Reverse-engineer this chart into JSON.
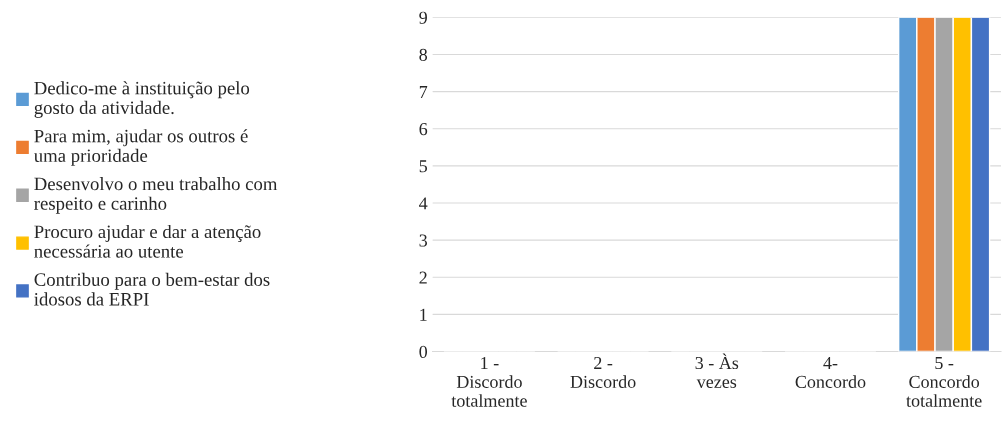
{
  "chart_data": {
    "type": "bar",
    "categories": [
      "1 - Discordo totalmente",
      "2 - Discordo",
      "3 - Às vezes",
      "4- Concordo",
      "5 - Concordo totalmente"
    ],
    "series": [
      {
        "name": "Dedico-me à instituição pelo gosto da atividade.",
        "color": "#5b9bd5",
        "values": [
          0,
          0,
          0,
          0,
          9
        ]
      },
      {
        "name": "Para mim, ajudar os outros é uma prioridade",
        "color": "#ed7d31",
        "values": [
          0,
          0,
          0,
          0,
          9
        ]
      },
      {
        "name": "Desenvolvo o meu trabalho com respeito e carinho",
        "color": "#a5a5a5",
        "values": [
          0,
          0,
          0,
          0,
          9
        ]
      },
      {
        "name": "Procuro ajudar e dar a atenção necessária ao utente",
        "color": "#ffc000",
        "values": [
          0,
          0,
          0,
          0,
          9
        ]
      },
      {
        "name": "Contribuo para o bem-estar dos idosos da ERPI",
        "color": "#4472c4",
        "values": [
          0,
          0,
          0,
          0,
          9
        ]
      }
    ],
    "ylim": [
      0,
      9
    ],
    "yticks": [
      0,
      1,
      2,
      3,
      4,
      5,
      6,
      7,
      8,
      9
    ],
    "grid": "y",
    "legend": "left"
  }
}
